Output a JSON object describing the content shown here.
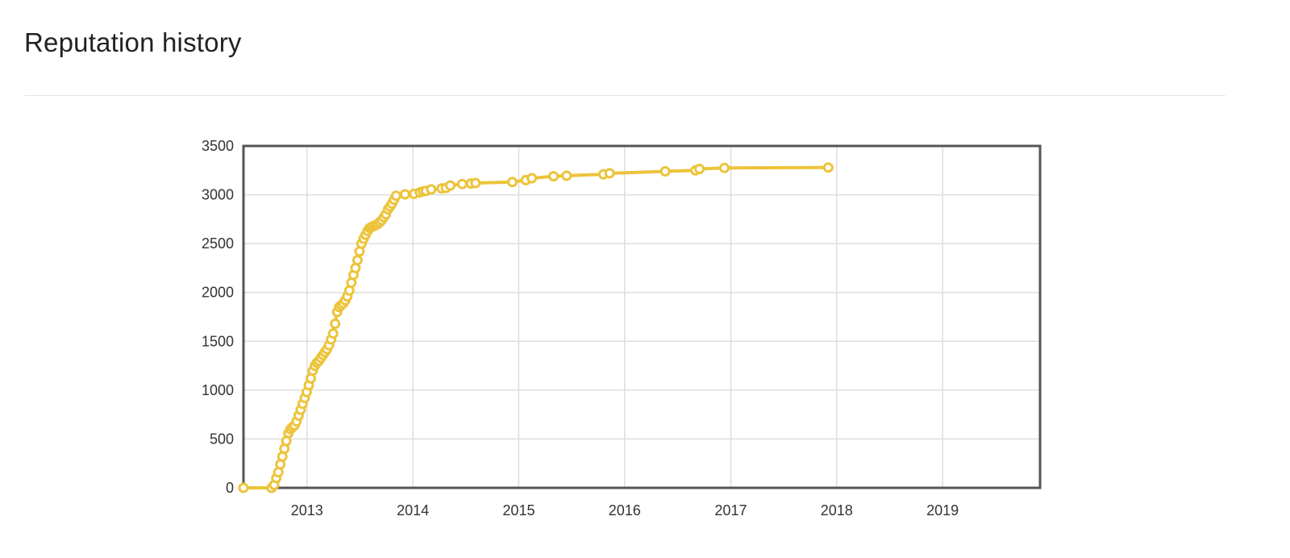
{
  "page": {
    "title": "Reputation history"
  },
  "colors": {
    "line": "#ecc43b",
    "grid": "#dedede",
    "frame": "#555555",
    "marker_fill": "#ffffff"
  },
  "chart_data": {
    "type": "line",
    "title": "",
    "xlabel": "",
    "ylabel": "",
    "grid": true,
    "legend": "none",
    "xlim": [
      "2012-05-27",
      "2019-12-03"
    ],
    "ylim": [
      0,
      3500
    ],
    "x_ticks": [
      "2013",
      "2014",
      "2015",
      "2016",
      "2017",
      "2018",
      "2019"
    ],
    "y_ticks": [
      "0",
      "500",
      "1000",
      "1500",
      "2000",
      "2500",
      "3000",
      "3500"
    ],
    "series": [
      {
        "points": [
          [
            "2012-05-27",
            0
          ],
          [
            "2012-09-01",
            0
          ],
          [
            "2012-09-10",
            30
          ],
          [
            "2012-09-17",
            100
          ],
          [
            "2012-09-24",
            160
          ],
          [
            "2012-10-01",
            240
          ],
          [
            "2012-10-08",
            320
          ],
          [
            "2012-10-15",
            400
          ],
          [
            "2012-10-22",
            480
          ],
          [
            "2012-10-29",
            560
          ],
          [
            "2012-11-05",
            600
          ],
          [
            "2012-11-12",
            620
          ],
          [
            "2012-11-19",
            640
          ],
          [
            "2012-11-26",
            680
          ],
          [
            "2012-12-03",
            740
          ],
          [
            "2012-12-10",
            800
          ],
          [
            "2012-12-17",
            860
          ],
          [
            "2012-12-24",
            920
          ],
          [
            "2012-12-31",
            980
          ],
          [
            "2013-01-07",
            1050
          ],
          [
            "2013-01-14",
            1120
          ],
          [
            "2013-01-21",
            1200
          ],
          [
            "2013-01-28",
            1250
          ],
          [
            "2013-02-04",
            1280
          ],
          [
            "2013-02-11",
            1300
          ],
          [
            "2013-02-18",
            1330
          ],
          [
            "2013-02-25",
            1360
          ],
          [
            "2013-03-04",
            1390
          ],
          [
            "2013-03-11",
            1420
          ],
          [
            "2013-03-18",
            1460
          ],
          [
            "2013-03-25",
            1520
          ],
          [
            "2013-04-01",
            1580
          ],
          [
            "2013-04-08",
            1680
          ],
          [
            "2013-04-15",
            1800
          ],
          [
            "2013-04-22",
            1850
          ],
          [
            "2013-04-29",
            1870
          ],
          [
            "2013-05-06",
            1890
          ],
          [
            "2013-05-13",
            1920
          ],
          [
            "2013-05-20",
            1960
          ],
          [
            "2013-05-27",
            2020
          ],
          [
            "2013-06-03",
            2100
          ],
          [
            "2013-06-10",
            2180
          ],
          [
            "2013-06-17",
            2250
          ],
          [
            "2013-06-24",
            2330
          ],
          [
            "2013-07-01",
            2420
          ],
          [
            "2013-07-08",
            2500
          ],
          [
            "2013-07-15",
            2550
          ],
          [
            "2013-07-22",
            2590
          ],
          [
            "2013-07-29",
            2630
          ],
          [
            "2013-08-05",
            2660
          ],
          [
            "2013-08-12",
            2670
          ],
          [
            "2013-08-19",
            2680
          ],
          [
            "2013-08-26",
            2690
          ],
          [
            "2013-09-02",
            2700
          ],
          [
            "2013-09-09",
            2720
          ],
          [
            "2013-09-16",
            2740
          ],
          [
            "2013-09-23",
            2770
          ],
          [
            "2013-09-30",
            2800
          ],
          [
            "2013-10-07",
            2850
          ],
          [
            "2013-10-14",
            2880
          ],
          [
            "2013-10-21",
            2910
          ],
          [
            "2013-10-28",
            2950
          ],
          [
            "2013-11-04",
            2990
          ],
          [
            "2013-12-05",
            3005
          ],
          [
            "2014-01-05",
            3010
          ],
          [
            "2014-01-25",
            3025
          ],
          [
            "2014-02-05",
            3035
          ],
          [
            "2014-02-15",
            3040
          ],
          [
            "2014-03-05",
            3055
          ],
          [
            "2014-04-10",
            3065
          ],
          [
            "2014-04-25",
            3070
          ],
          [
            "2014-05-10",
            3095
          ],
          [
            "2014-06-20",
            3110
          ],
          [
            "2014-07-20",
            3115
          ],
          [
            "2014-08-05",
            3120
          ],
          [
            "2014-12-10",
            3130
          ],
          [
            "2015-01-25",
            3150
          ],
          [
            "2015-02-15",
            3170
          ],
          [
            "2015-05-01",
            3190
          ],
          [
            "2015-06-15",
            3195
          ],
          [
            "2015-10-20",
            3210
          ],
          [
            "2015-11-10",
            3220
          ],
          [
            "2016-05-20",
            3240
          ],
          [
            "2016-09-01",
            3250
          ],
          [
            "2016-09-15",
            3265
          ],
          [
            "2016-12-10",
            3275
          ],
          [
            "2017-12-03",
            3280
          ]
        ]
      }
    ]
  }
}
